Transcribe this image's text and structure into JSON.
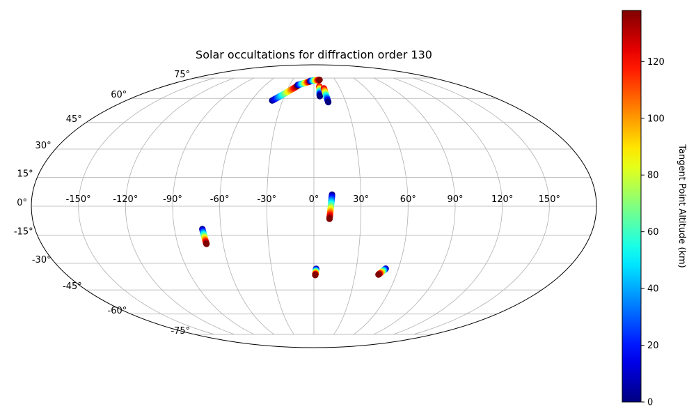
{
  "chart_data": {
    "type": "scatter",
    "title": "Solar occultations for diffraction order 130",
    "projection": "mollweide",
    "grid": true,
    "lon_ticks": [
      -150,
      -120,
      -90,
      -60,
      -30,
      0,
      30,
      60,
      90,
      120,
      150
    ],
    "lat_ticks": [
      -75,
      -60,
      -45,
      -30,
      -15,
      0,
      15,
      30,
      45,
      60,
      75
    ],
    "lon_tick_labels": [
      "-150°",
      "-120°",
      "-90°",
      "-60°",
      "-30°",
      "0°",
      "30°",
      "60°",
      "90°",
      "120°",
      "150°"
    ],
    "lat_tick_labels": [
      "-75°",
      "-60°",
      "-45°",
      "-30°",
      "-15°",
      "0°",
      "15°",
      "30°",
      "45°",
      "60°",
      "75°"
    ],
    "colorbar": {
      "label": "Tangent Point Altitude (km)",
      "colormap": "jet",
      "range": [
        0,
        138
      ],
      "ticks": [
        0,
        20,
        40,
        60,
        80,
        100,
        120
      ],
      "tick_labels": [
        "0",
        "20",
        "40",
        "60",
        "80",
        "100",
        "120"
      ]
    },
    "occultations": [
      {
        "lon_start": -40,
        "lat_start": 58.6,
        "lon_end": -20,
        "lat_end": 68.8,
        "alt_start": 0,
        "alt_end": 138
      },
      {
        "lon_start": -20,
        "lat_start": 69.5,
        "lon_end": -5,
        "lat_end": 72.3,
        "alt_start": 0,
        "alt_end": 138
      },
      {
        "lon_start": -5,
        "lat_start": 72.6,
        "lon_end": 8,
        "lat_end": 73.5,
        "alt_start": 0,
        "alt_end": 138
      },
      {
        "lon_start": 6.5,
        "lat_start": 68.5,
        "lon_end": 6.0,
        "lat_end": 61.5,
        "alt_start": 130,
        "alt_end": 0
      },
      {
        "lon_start": 11.5,
        "lat_start": 67.0,
        "lon_end": 13.5,
        "lat_end": 57.5,
        "alt_start": 130,
        "alt_end": 0
      },
      {
        "lon_start": 11.6,
        "lat_start": 6.0,
        "lon_end": 10.0,
        "lat_end": -6.5,
        "alt_start": 0,
        "alt_end": 138
      },
      {
        "lon_start": -72,
        "lat_start": -11.8,
        "lon_end": -71,
        "lat_end": -19.6,
        "alt_start": 0,
        "alt_end": 138
      },
      {
        "lon_start": 1.6,
        "lat_start": -33.0,
        "lon_end": 1.0,
        "lat_end": -36.5,
        "alt_start": 0,
        "alt_end": 138
      },
      {
        "lon_start": 51.0,
        "lat_start": -32.9,
        "lon_end": 47.0,
        "lat_end": -36.2,
        "alt_start": 0,
        "alt_end": 138
      }
    ]
  }
}
